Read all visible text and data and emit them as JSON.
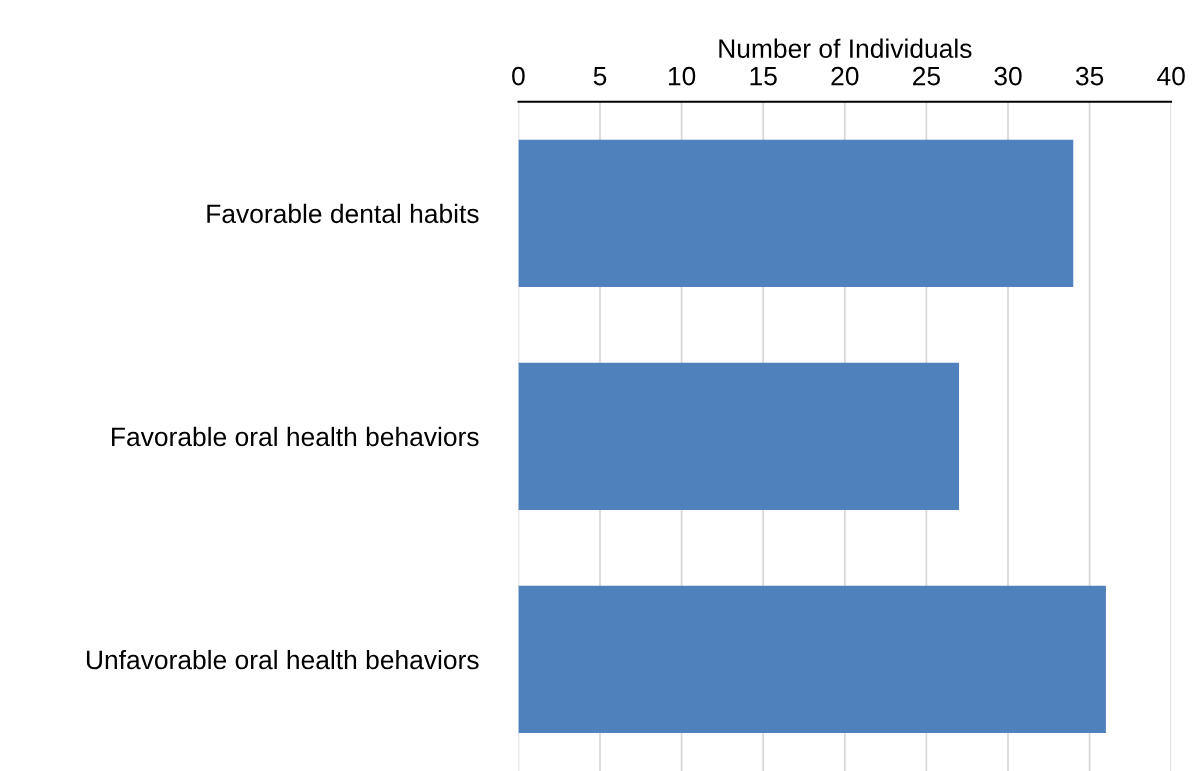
{
  "chart_data": {
    "type": "bar",
    "orientation": "horizontal",
    "xlabel": "Number of Individuals",
    "categories": [
      "Favorable dental habits",
      "Favorable oral health behaviors",
      "Unfavorable oral health behaviors"
    ],
    "values": [
      34,
      27,
      36
    ],
    "color": "#4f81bd",
    "xlim": [
      0,
      40
    ],
    "xticks": [
      0,
      5,
      10,
      15,
      20,
      25,
      30,
      35,
      40
    ],
    "grid": "x",
    "legend": false
  }
}
